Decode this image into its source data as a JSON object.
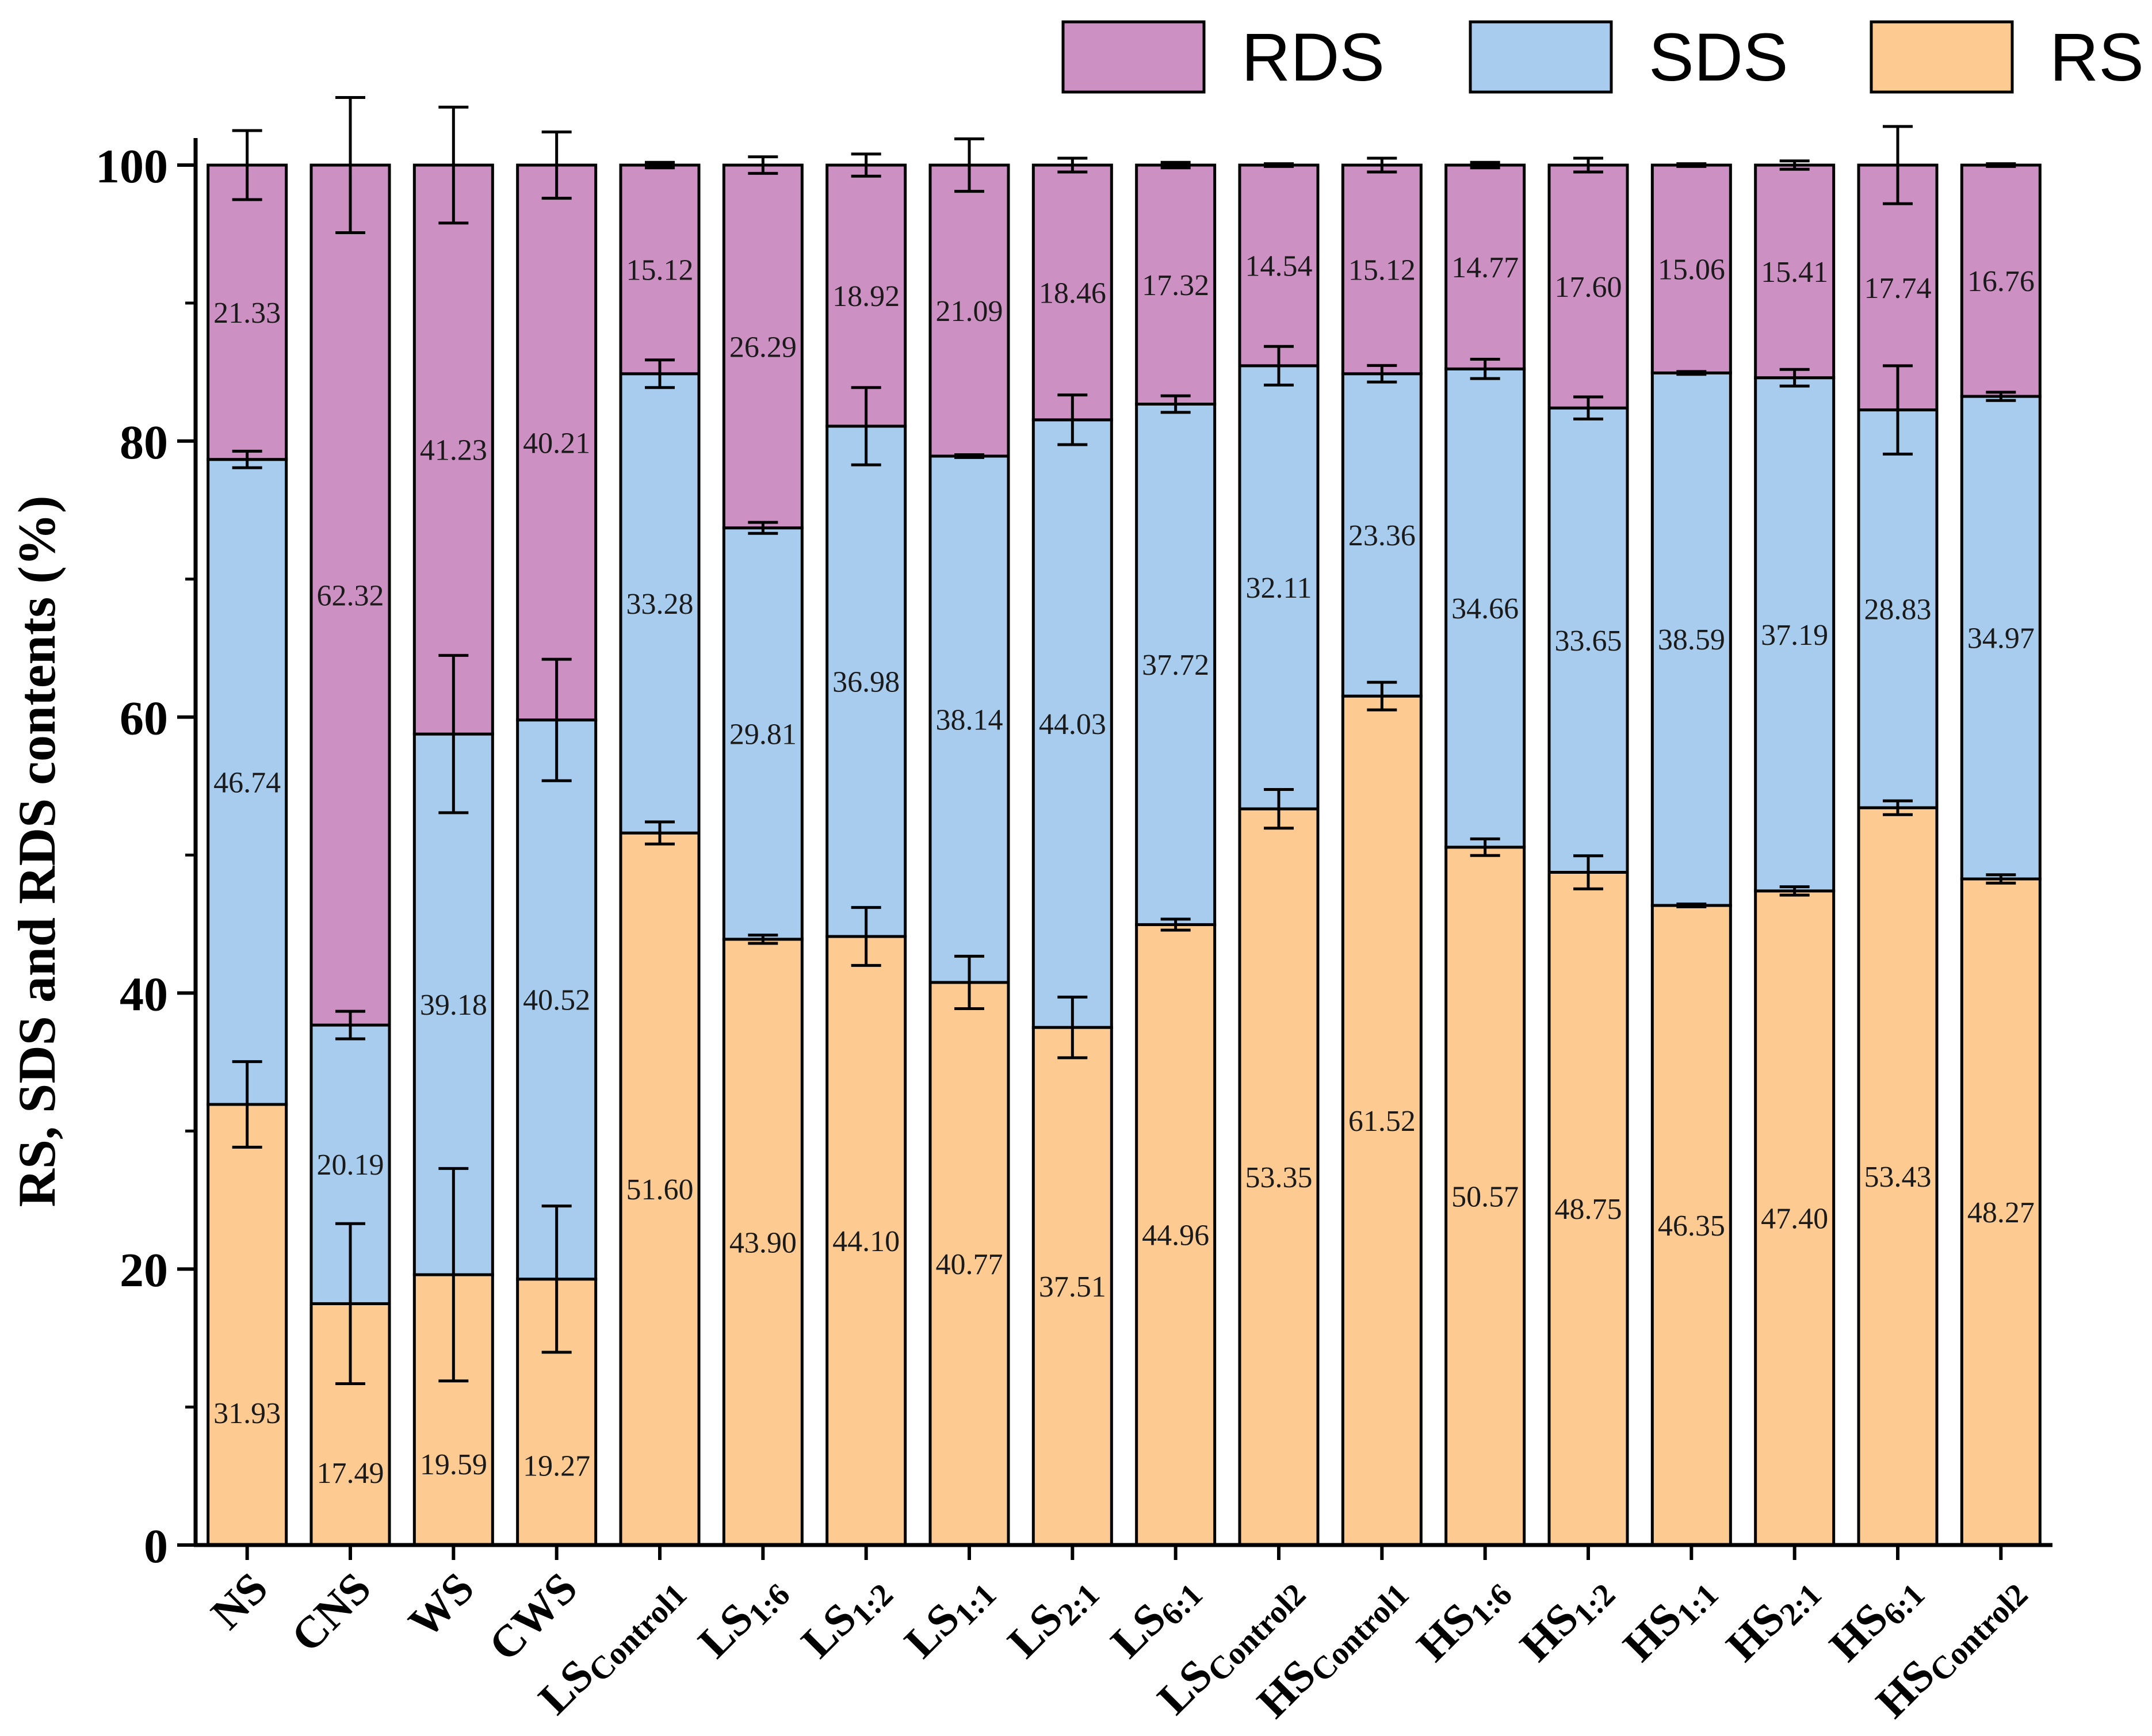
{
  "chart_data": {
    "type": "bar",
    "stacked": true,
    "ylabel": "RS, SDS and RDS contents (%)",
    "xlabel": "",
    "ylim": [
      0,
      100
    ],
    "yticks": [
      0,
      20,
      40,
      60,
      80,
      100
    ],
    "legend_position": "top-right",
    "categories": [
      {
        "main": "NS",
        "sub": ""
      },
      {
        "main": "CNS",
        "sub": ""
      },
      {
        "main": "WS",
        "sub": ""
      },
      {
        "main": "CWS",
        "sub": ""
      },
      {
        "main": "LS",
        "sub": "Control1"
      },
      {
        "main": "LS",
        "sub": "1:6"
      },
      {
        "main": "LS",
        "sub": "1:2"
      },
      {
        "main": "LS",
        "sub": "1:1"
      },
      {
        "main": "LS",
        "sub": "2:1"
      },
      {
        "main": "LS",
        "sub": "6:1"
      },
      {
        "main": "LS",
        "sub": "Control2"
      },
      {
        "main": "HS",
        "sub": "Control1"
      },
      {
        "main": "HS",
        "sub": "1:6"
      },
      {
        "main": "HS",
        "sub": "1:2"
      },
      {
        "main": "HS",
        "sub": "1:1"
      },
      {
        "main": "HS",
        "sub": "2:1"
      },
      {
        "main": "HS",
        "sub": "6:1"
      },
      {
        "main": "HS",
        "sub": "Control2"
      }
    ],
    "series": [
      {
        "name": "RS",
        "color": "#FDCB92",
        "values": [
          31.93,
          17.49,
          19.59,
          19.27,
          51.6,
          43.9,
          44.1,
          40.77,
          37.51,
          44.96,
          53.35,
          61.52,
          50.57,
          48.75,
          46.35,
          47.4,
          53.43,
          48.27
        ],
        "labels": [
          "31.93",
          "17.49",
          "19.59",
          "19.27",
          "51.60",
          "43.90",
          "44.10",
          "40.77",
          "37.51",
          "44.96",
          "53.35",
          "61.52",
          "50.57",
          "48.75",
          "46.35",
          "47.40",
          "53.43",
          "48.27"
        ],
        "errors": [
          3.1,
          5.8,
          7.7,
          5.3,
          0.8,
          0.3,
          2.1,
          1.9,
          2.2,
          0.4,
          1.4,
          1.0,
          0.6,
          1.2,
          0.1,
          0.3,
          0.5,
          0.3
        ]
      },
      {
        "name": "SDS",
        "color": "#A8CCEE",
        "values": [
          46.74,
          20.19,
          39.18,
          40.52,
          33.28,
          29.81,
          36.98,
          38.14,
          44.03,
          37.72,
          32.11,
          23.36,
          34.66,
          33.65,
          38.59,
          37.19,
          28.83,
          34.97
        ],
        "labels": [
          "46.74",
          "20.19",
          "39.18",
          "40.52",
          "33.28",
          "29.81",
          "36.98",
          "38.14",
          "44.03",
          "37.72",
          "32.11",
          "23.36",
          "34.66",
          "33.65",
          "38.59",
          "37.19",
          "28.83",
          "34.97"
        ],
        "errors": [
          0.6,
          1.0,
          5.7,
          4.4,
          1.0,
          0.4,
          2.8,
          0.1,
          1.8,
          0.6,
          1.4,
          0.6,
          0.7,
          0.8,
          0.1,
          0.6,
          3.2,
          0.3
        ]
      },
      {
        "name": "RDS",
        "color": "#CD90C3",
        "values": [
          21.33,
          62.32,
          41.23,
          40.21,
          15.12,
          26.29,
          18.92,
          21.09,
          18.46,
          17.32,
          14.54,
          15.12,
          14.77,
          17.6,
          15.06,
          15.41,
          17.74,
          16.76
        ],
        "labels": [
          "21.33",
          "62.32",
          "41.23",
          "40.21",
          "15.12",
          "26.29",
          "18.92",
          "21.09",
          "18.46",
          "17.32",
          "14.54",
          "15.12",
          "14.77",
          "17.60",
          "15.06",
          "15.41",
          "17.74",
          "16.76"
        ],
        "errors": [
          2.5,
          4.9,
          4.2,
          2.4,
          0.2,
          0.6,
          0.8,
          1.9,
          0.5,
          0.2,
          0.1,
          0.5,
          0.2,
          0.5,
          0.1,
          0.3,
          2.8,
          0.1
        ]
      }
    ],
    "legend_order": [
      "RDS",
      "SDS",
      "RS"
    ]
  }
}
